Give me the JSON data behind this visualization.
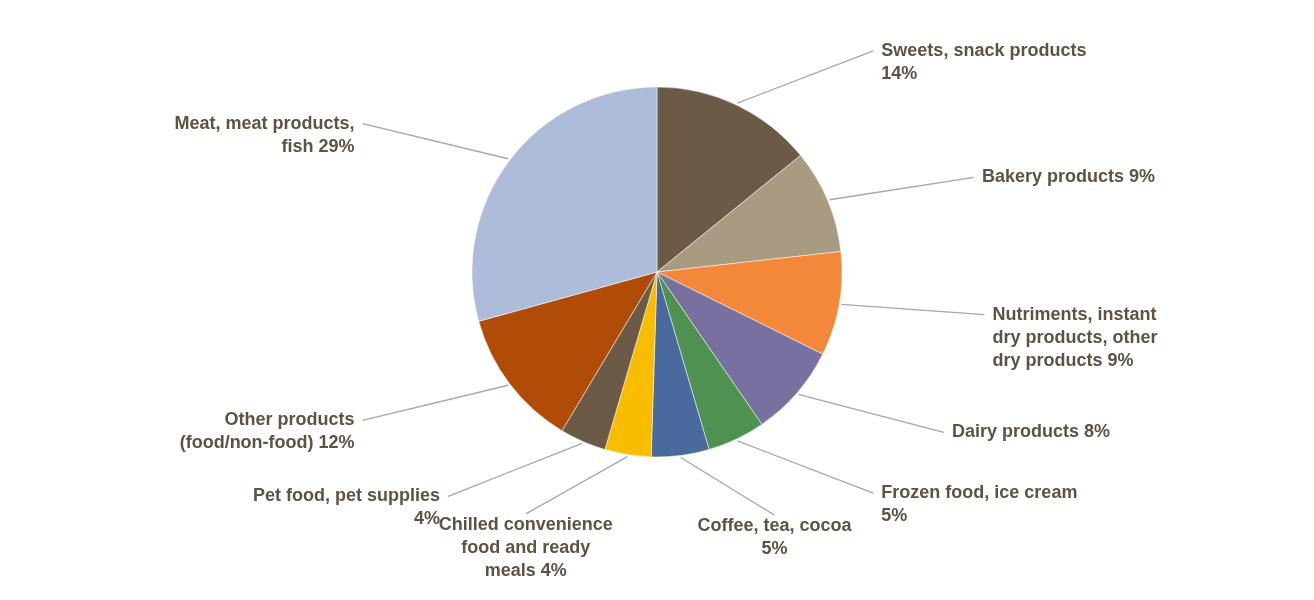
{
  "chart_data": {
    "type": "pie",
    "categories": [
      "Sweets, snack products",
      "Bakery products",
      "Nutriments, instant dry products, other dry products",
      "Dairy products",
      "Frozen food, ice cream",
      "Coffee, tea, cocoa",
      "Chilled convenience food and ready meals",
      "Pet food, pet supplies",
      "Other products (food/non-food)",
      "Meat, meat products, fish"
    ],
    "values": [
      14,
      9,
      9,
      8,
      5,
      5,
      4,
      4,
      12,
      29
    ],
    "value_labels": [
      "14%",
      "9%",
      "9%",
      "8%",
      "5%",
      "5%",
      "4%",
      "4%",
      "12%",
      "29%"
    ],
    "colors": [
      "#6b5a45",
      "#a99a82",
      "#f3883b",
      "#78709e",
      "#4f9150",
      "#4a6a9d",
      "#f9bd00",
      "#6b5a45",
      "#b04c07",
      "#adbcd8"
    ]
  }
}
